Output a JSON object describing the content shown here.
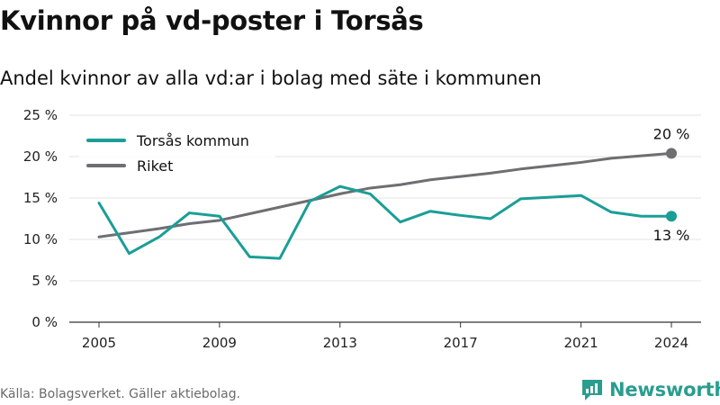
{
  "title": "Kvinnor på vd-poster i Torsås",
  "subtitle": "Andel kvinnor av alla vd:ar i bolag med säte i kommunen",
  "source": "Källa: Bolagsverket. Gäller aktiebolag.",
  "brand": {
    "name": "Newsworthy",
    "icon": "newsworthy-logo-icon",
    "color": "#2a9d8f"
  },
  "chart_data": {
    "type": "line",
    "x": [
      2005,
      2006,
      2007,
      2008,
      2009,
      2010,
      2011,
      2012,
      2013,
      2014,
      2015,
      2016,
      2017,
      2018,
      2019,
      2020,
      2021,
      2022,
      2023,
      2024
    ],
    "series": [
      {
        "name": "Torsås kommun",
        "color": "#1a9e96",
        "values": [
          14.4,
          8.3,
          10.3,
          13.2,
          12.8,
          7.9,
          7.7,
          14.6,
          16.4,
          15.5,
          12.1,
          13.4,
          12.9,
          12.5,
          14.9,
          15.1,
          15.3,
          13.3,
          12.8,
          12.8
        ],
        "end_label": "13 %"
      },
      {
        "name": "Riket",
        "color": "#6e6e73",
        "values": [
          10.3,
          10.8,
          11.3,
          11.9,
          12.3,
          13.1,
          13.9,
          14.7,
          15.5,
          16.2,
          16.6,
          17.2,
          17.6,
          18.0,
          18.5,
          18.9,
          19.3,
          19.8,
          20.1,
          20.4
        ],
        "end_label": "20 %"
      }
    ],
    "y_ticks": [
      0,
      5,
      10,
      15,
      20,
      25
    ],
    "y_tick_labels": [
      "0 %",
      "5 %",
      "10 %",
      "15 %",
      "20 %",
      "25 %"
    ],
    "x_ticks": [
      2005,
      2009,
      2013,
      2017,
      2021,
      2024
    ],
    "x_tick_labels": [
      "2005",
      "2009",
      "2013",
      "2017",
      "2021",
      "2024"
    ],
    "ylim": [
      0,
      25
    ],
    "xlim": [
      2005,
      2024
    ],
    "grid": true,
    "legend_position": "top-left"
  }
}
